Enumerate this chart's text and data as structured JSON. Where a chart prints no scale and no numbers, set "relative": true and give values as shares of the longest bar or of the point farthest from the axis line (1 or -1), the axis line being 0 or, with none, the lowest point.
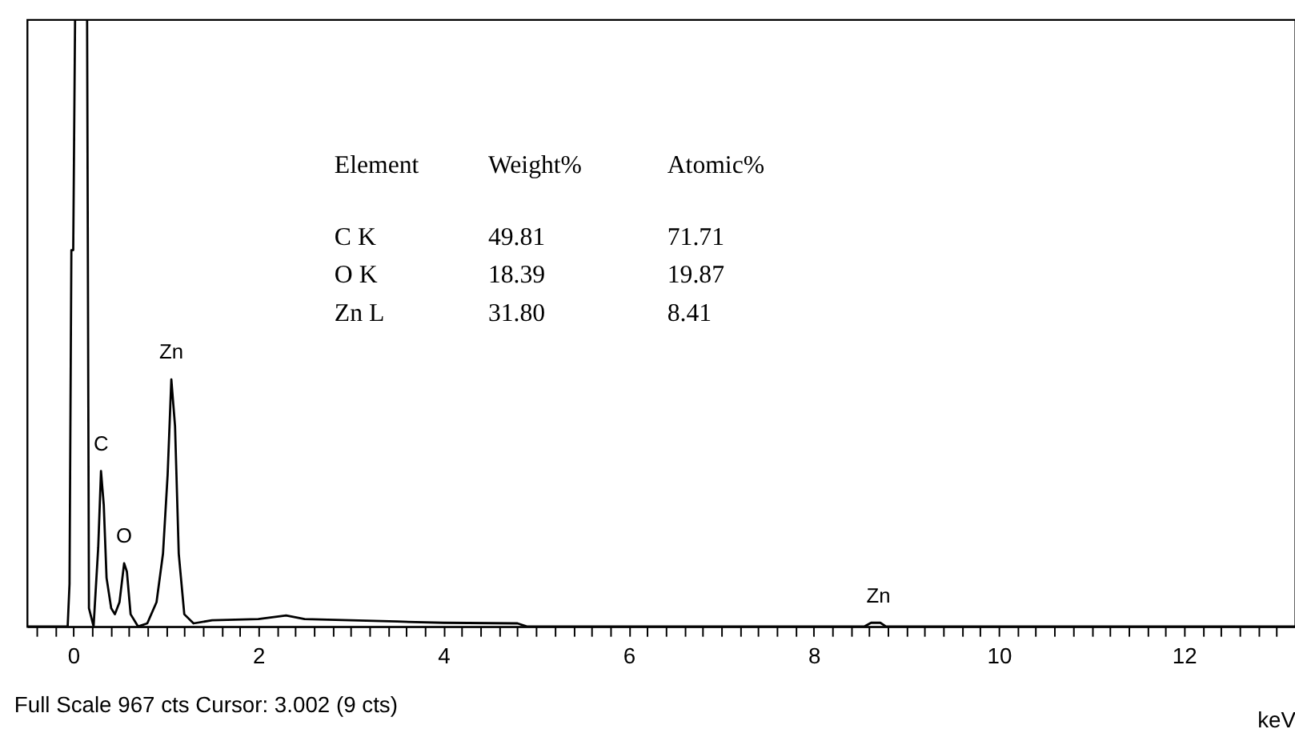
{
  "chart_data": {
    "type": "line",
    "relative": true,
    "xlabel": "keV",
    "xlim": [
      -0.5,
      13.2
    ],
    "xticks": [
      {
        "value": -0.4,
        "label": null
      },
      {
        "value": -0.2,
        "label": null
      },
      0,
      {
        "value": 0.2,
        "label": null
      },
      {
        "value": 0.4,
        "label": null
      },
      {
        "value": 0.6,
        "label": null
      },
      {
        "value": 0.8,
        "label": null
      },
      {
        "value": 1,
        "label": null
      },
      {
        "value": 1.2,
        "label": null
      },
      {
        "value": 1.4,
        "label": null
      },
      {
        "value": 1.6,
        "label": null
      },
      {
        "value": 1.8,
        "label": null
      },
      2,
      {
        "value": 2.2,
        "label": null
      },
      {
        "value": 2.4,
        "label": null
      },
      {
        "value": 2.6,
        "label": null
      },
      {
        "value": 2.8,
        "label": null
      },
      {
        "value": 3,
        "label": null
      },
      {
        "value": 3.2,
        "label": null
      },
      {
        "value": 3.4,
        "label": null
      },
      {
        "value": 3.6,
        "label": null
      },
      {
        "value": 3.8,
        "label": null
      },
      4,
      {
        "value": 4.2,
        "label": null
      },
      {
        "value": 4.4,
        "label": null
      },
      {
        "value": 4.6,
        "label": null
      },
      {
        "value": 4.8,
        "label": null
      },
      {
        "value": 5,
        "label": null
      },
      {
        "value": 5.2,
        "label": null
      },
      {
        "value": 5.4,
        "label": null
      },
      {
        "value": 5.6,
        "label": null
      },
      {
        "value": 5.8,
        "label": null
      },
      6,
      {
        "value": 6.2,
        "label": null
      },
      {
        "value": 6.4,
        "label": null
      },
      {
        "value": 6.6,
        "label": null
      },
      {
        "value": 6.8,
        "label": null
      },
      {
        "value": 7,
        "label": null
      },
      {
        "value": 7.2,
        "label": null
      },
      {
        "value": 7.4,
        "label": null
      },
      {
        "value": 7.6,
        "label": null
      },
      {
        "value": 7.8,
        "label": null
      },
      8,
      {
        "value": 8.2,
        "label": null
      },
      {
        "value": 8.4,
        "label": null
      },
      {
        "value": 8.6,
        "label": null
      },
      {
        "value": 8.8,
        "label": null
      },
      {
        "value": 9,
        "label": null
      },
      {
        "value": 9.2,
        "label": null
      },
      {
        "value": 9.4,
        "label": null
      },
      {
        "value": 9.6,
        "label": null
      },
      {
        "value": 9.8,
        "label": null
      },
      10,
      {
        "value": 10.2,
        "label": null
      },
      {
        "value": 10.4,
        "label": null
      },
      {
        "value": 10.6,
        "label": null
      },
      {
        "value": 10.8,
        "label": null
      },
      {
        "value": 11,
        "label": null
      },
      {
        "value": 11.2,
        "label": null
      },
      {
        "value": 11.4,
        "label": null
      },
      {
        "value": 11.6,
        "label": null
      },
      {
        "value": 11.8,
        "label": null
      },
      12,
      {
        "value": 12.2,
        "label": null
      },
      {
        "value": 12.4,
        "label": null
      },
      {
        "value": 12.6,
        "label": null
      },
      {
        "value": 12.8,
        "label": null
      },
      {
        "value": 13,
        "label": null
      }
    ],
    "x": [
      -0.5,
      -0.06,
      -0.04,
      -0.02,
      0.0,
      0.02,
      0.15,
      0.17,
      0.22,
      0.27,
      0.3,
      0.33,
      0.36,
      0.41,
      0.45,
      0.5,
      0.55,
      0.58,
      0.62,
      0.7,
      0.8,
      0.9,
      0.97,
      1.02,
      1.06,
      1.1,
      1.14,
      1.2,
      1.3,
      1.5,
      2.0,
      2.3,
      2.5,
      3.0,
      3.5,
      4.0,
      4.8,
      4.9,
      8.55,
      8.62,
      8.72,
      8.78,
      13.2
    ],
    "series": [
      {
        "color": "#000000",
        "values": [
          0,
          0,
          0.07,
          0.62,
          0.62,
          1,
          1,
          0.03,
          0.0,
          0.13,
          0.256,
          0.2,
          0.08,
          0.03,
          0.02,
          0.04,
          0.104,
          0.09,
          0.02,
          0.0,
          0.005,
          0.04,
          0.12,
          0.25,
          0.407,
          0.33,
          0.12,
          0.02,
          0.005,
          0.01,
          0.012,
          0.018,
          0.012,
          0.01,
          0.008,
          0.006,
          0.005,
          0.0,
          0.0,
          0.006,
          0.006,
          0.0,
          0.0
        ]
      }
    ],
    "annotations": [
      {
        "text": "C",
        "x": 0.3,
        "y": 0.256
      },
      {
        "text": "O",
        "x": 0.55,
        "y": 0.104
      },
      {
        "text": "Zn",
        "x": 1.06,
        "y": 0.407
      },
      {
        "text": "Zn",
        "x": 8.7,
        "y": 0.006
      },
      "Element",
      "Weight%",
      "Atomic%",
      "C K",
      "49.81",
      "71.71",
      "O K",
      "18.39",
      "19.87",
      "Zn L",
      "31.80",
      "8.41",
      "Full Scale 967 cts Cursor: 3.002  (9 cts)"
    ],
    "grid": false,
    "marker": "none",
    "line_style": "solid"
  }
}
